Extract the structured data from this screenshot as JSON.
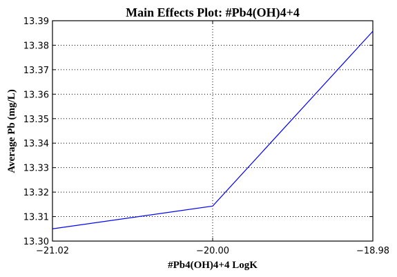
{
  "chart_data": {
    "type": "line",
    "title": "Main Effects Plot: #Pb4(OH)4+4",
    "xlabel": "#Pb4(OH)4+4 LogK",
    "ylabel": "Average Pb (mg/L)",
    "x": [
      -21.02,
      -20.0,
      -18.98
    ],
    "x_tick_labels": [
      "−21.02",
      "−20.00",
      "−18.98"
    ],
    "xlim": [
      -21.02,
      -18.98
    ],
    "y_ticks": [
      13.3,
      13.31,
      13.32,
      13.33,
      13.34,
      13.35,
      13.36,
      13.37,
      13.38,
      13.39
    ],
    "y_tick_labels": [
      "13.30",
      "13.31",
      "13.32",
      "13.33",
      "13.34",
      "13.35",
      "13.36",
      "13.37",
      "13.38",
      "13.39"
    ],
    "ylim": [
      13.3,
      13.39
    ],
    "series": [
      {
        "values": [
          13.305,
          13.3143,
          13.3857
        ],
        "color": "#0000ff"
      }
    ],
    "grid": true,
    "grid_style": "dotted"
  }
}
